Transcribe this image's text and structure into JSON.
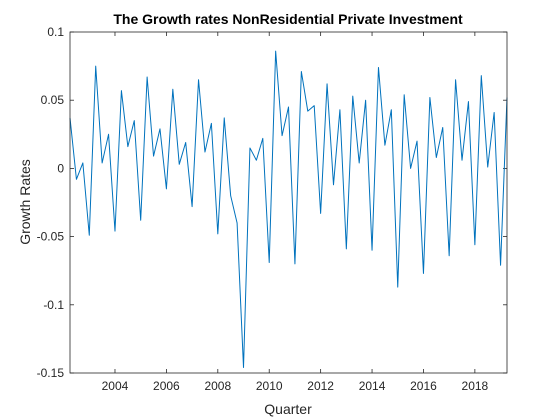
{
  "chart_data": {
    "type": "line",
    "title": "The Growth rates NonResidential Private Investment",
    "xlabel": "Quarter",
    "ylabel": "Growth Rates",
    "xlim": [
      2002.25,
      2019.25
    ],
    "ylim": [
      -0.15,
      0.1
    ],
    "x_ticks": [
      "2004",
      "2006",
      "2008",
      "2010",
      "2012",
      "2014",
      "2016",
      "2018"
    ],
    "y_ticks": [
      "0.1",
      "0.05",
      "0",
      "-0.05",
      "-0.1",
      "-0.15"
    ],
    "grid": false,
    "line_color": "#0072bd",
    "series": [
      {
        "x_start": 2002.25,
        "x_step": 0.25,
        "values": [
          0.037,
          -0.008,
          0.004,
          -0.049,
          0.075,
          0.004,
          0.025,
          -0.046,
          0.057,
          0.016,
          0.035,
          -0.038,
          0.067,
          0.009,
          0.029,
          -0.015,
          0.058,
          0.003,
          0.019,
          -0.028,
          0.065,
          0.012,
          0.033,
          -0.048,
          0.037,
          -0.02,
          -0.04,
          -0.146,
          0.015,
          0.006,
          0.022,
          -0.069,
          0.086,
          0.024,
          0.045,
          -0.07,
          0.071,
          0.042,
          0.046,
          -0.033,
          0.062,
          -0.012,
          0.043,
          -0.059,
          0.053,
          0.004,
          0.05,
          -0.06,
          0.074,
          0.017,
          0.043,
          -0.087,
          0.054,
          0.0,
          0.02,
          -0.077,
          0.052,
          0.008,
          0.03,
          -0.064,
          0.065,
          0.006,
          0.049,
          -0.056,
          0.068,
          0.001,
          0.041,
          -0.071,
          0.052
        ]
      }
    ]
  }
}
